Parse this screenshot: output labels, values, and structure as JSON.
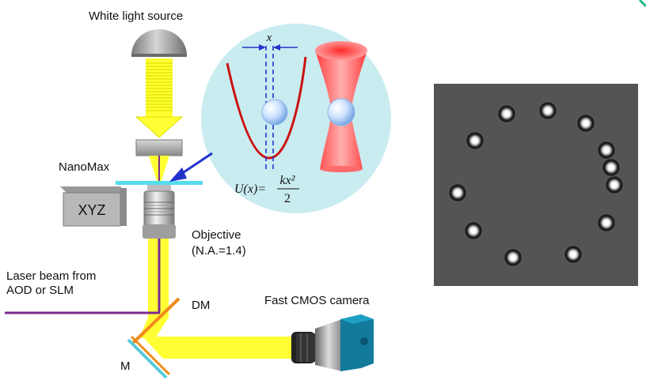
{
  "labels": {
    "white_light_source": "White light source",
    "nanomax": "NanoMax",
    "xyz": "XYZ",
    "objective": "Objective",
    "numerical_aperture": "(N.A.=1.4)",
    "laser_beam_line1": "Laser beam from",
    "laser_beam_line2": "AOD or SLM",
    "dm": "DM",
    "mirror": "M",
    "camera": "Fast CMOS camera"
  },
  "inset": {
    "displacement_symbol": "x",
    "potential_lhs": "U(x)=",
    "potential_numerator": "kx²",
    "potential_denominator": "2"
  },
  "colors": {
    "beam_yellow": "#ffff33",
    "laser_purple": "#7a2a90",
    "inset_background": "#c9ecf1",
    "potential_curve": "#cc1111",
    "trap_red": "#ee3333",
    "stage_cyan": "#55ddee",
    "arrow_blue": "#2233cc",
    "bead_blue": "#b8d8ff"
  },
  "micrograph": {
    "bead_count": 12
  }
}
